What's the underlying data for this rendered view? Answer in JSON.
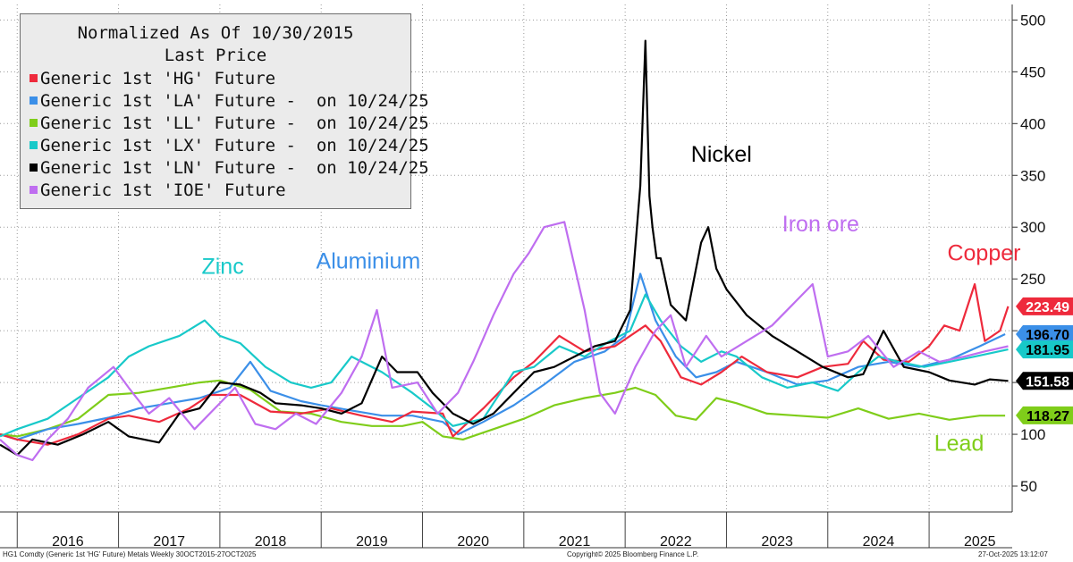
{
  "legend": {
    "title_line1": "Normalized As Of 10/30/2015",
    "title_line2": "Last Price",
    "entries": [
      {
        "label": "Generic 1st 'HG' Future",
        "color": "#ee2a3c"
      },
      {
        "label": "Generic 1st 'LA' Future -  on 10/24/25",
        "color": "#3b8fe8"
      },
      {
        "label": "Generic 1st 'LL' Future -  on 10/24/25",
        "color": "#7fcd1a"
      },
      {
        "label": "Generic 1st 'LX' Future -  on 10/24/25",
        "color": "#18c9c9"
      },
      {
        "label": "Generic 1st 'LN' Future -  on 10/24/25",
        "color": "#000000"
      },
      {
        "label": "Generic 1st 'IOE' Future",
        "color": "#bf6ef0"
      }
    ]
  },
  "footer": {
    "left": "HG1 Comdty (Generic 1st 'HG' Future) Metals Weekly 30OCT2015-27OCT2025",
    "center": "Copyright© 2025 Bloomberg Finance L.P.",
    "right": "27-Oct-2025 13:12:07"
  },
  "chart_data": {
    "type": "line",
    "x_unit": "year",
    "xlim": [
      2015.83,
      2025.82
    ],
    "ylim": [
      25,
      515
    ],
    "y_ticks": [
      50,
      100,
      150,
      200,
      250,
      300,
      350,
      400,
      450,
      500
    ],
    "x_tick_labels": [
      "2016",
      "2017",
      "2018",
      "2019",
      "2020",
      "2021",
      "2022",
      "2023",
      "2024",
      "2025"
    ],
    "y_axis_position": "right",
    "grid": "dotted",
    "legend_position": "top-left",
    "annotations": [
      {
        "text": "Nickel",
        "x": 2022.65,
        "y": 363,
        "color": "#000000"
      },
      {
        "text": "Iron ore",
        "x": 2023.55,
        "y": 296,
        "color": "#bf6ef0"
      },
      {
        "text": "Copper",
        "x": 2025.18,
        "y": 268,
        "color": "#ee2a3c"
      },
      {
        "text": "Zinc",
        "x": 2017.82,
        "y": 255,
        "color": "#18c9c9"
      },
      {
        "text": "Aluminium",
        "x": 2018.95,
        "y": 260,
        "color": "#3b8fe8"
      },
      {
        "text": "Lead",
        "x": 2025.05,
        "y": 84,
        "color": "#7fcd1a"
      }
    ],
    "last_values": [
      {
        "label": "223.49",
        "value": 223.49,
        "color": "#ee2a3c",
        "text_color": "#ffffff"
      },
      {
        "label": "196.70",
        "value": 196.7,
        "color": "#3b8fe8",
        "text_color": "#000000"
      },
      {
        "label": "181.95",
        "value": 181.95,
        "color": "#18c9c9",
        "text_color": "#000000"
      },
      {
        "label": "151.58",
        "value": 151.58,
        "color": "#000000",
        "text_color": "#ffffff"
      },
      {
        "label": "118.27",
        "value": 118.27,
        "color": "#7fcd1a",
        "text_color": "#000000"
      }
    ],
    "series": [
      {
        "name": "Generic 1st 'LL' Future -  on 10/24/25",
        "color": "#7fcd1a",
        "x": [
          2015.83,
          2016.0,
          2016.3,
          2016.6,
          2016.9,
          2017.2,
          2017.5,
          2017.8,
          2018.0,
          2018.3,
          2018.6,
          2018.9,
          2019.2,
          2019.5,
          2019.8,
          2020.0,
          2020.2,
          2020.4,
          2020.7,
          2021.0,
          2021.3,
          2021.6,
          2021.9,
          2022.1,
          2022.3,
          2022.5,
          2022.7,
          2022.9,
          2023.1,
          2023.4,
          2023.7,
          2024.0,
          2024.3,
          2024.6,
          2024.9,
          2025.2,
          2025.5,
          2025.75
        ],
        "y": [
          100,
          98,
          105,
          115,
          138,
          140,
          145,
          150,
          152,
          143,
          122,
          120,
          112,
          108,
          108,
          112,
          98,
          95,
          105,
          115,
          128,
          135,
          140,
          145,
          138,
          118,
          114,
          135,
          130,
          120,
          118,
          116,
          125,
          115,
          120,
          114,
          118,
          118
        ]
      },
      {
        "name": "Generic 1st 'LA' Future -  on 10/24/25",
        "color": "#3b8fe8",
        "x": [
          2015.83,
          2016.0,
          2016.3,
          2016.6,
          2016.9,
          2017.2,
          2017.5,
          2017.8,
          2018.1,
          2018.3,
          2018.5,
          2018.8,
          2019.0,
          2019.3,
          2019.6,
          2019.9,
          2020.2,
          2020.35,
          2020.6,
          2020.9,
          2021.2,
          2021.5,
          2021.8,
          2022.0,
          2022.15,
          2022.3,
          2022.5,
          2022.7,
          2022.9,
          2023.1,
          2023.4,
          2023.7,
          2024.0,
          2024.3,
          2024.6,
          2024.9,
          2025.2,
          2025.5,
          2025.75
        ],
        "y": [
          100,
          95,
          105,
          110,
          116,
          125,
          130,
          135,
          145,
          170,
          142,
          132,
          128,
          123,
          118,
          118,
          112,
          100,
          112,
          128,
          148,
          170,
          180,
          195,
          255,
          210,
          175,
          155,
          160,
          170,
          160,
          148,
          152,
          165,
          170,
          165,
          172,
          185,
          196.7
        ]
      },
      {
        "name": "Generic 1st 'HG' Future",
        "color": "#ee2a3c",
        "x": [
          2015.83,
          2016.0,
          2016.3,
          2016.6,
          2016.9,
          2017.1,
          2017.4,
          2017.7,
          2017.9,
          2018.2,
          2018.5,
          2018.8,
          2019.1,
          2019.4,
          2019.7,
          2019.9,
          2020.2,
          2020.3,
          2020.6,
          2020.9,
          2021.1,
          2021.35,
          2021.6,
          2021.9,
          2022.2,
          2022.35,
          2022.55,
          2022.75,
          2022.95,
          2023.15,
          2023.4,
          2023.7,
          2023.95,
          2024.2,
          2024.35,
          2024.55,
          2024.8,
          2025.0,
          2025.15,
          2025.3,
          2025.45,
          2025.55,
          2025.7,
          2025.78
        ],
        "y": [
          100,
          95,
          90,
          100,
          115,
          118,
          112,
          125,
          138,
          138,
          122,
          120,
          125,
          118,
          112,
          122,
          120,
          98,
          125,
          155,
          170,
          195,
          180,
          185,
          205,
          190,
          155,
          148,
          160,
          175,
          160,
          155,
          165,
          168,
          190,
          172,
          170,
          185,
          205,
          200,
          245,
          190,
          200,
          223.49
        ]
      },
      {
        "name": "Generic 1st 'LX' Future -  on 10/24/25",
        "color": "#18c9c9",
        "x": [
          2015.83,
          2016.0,
          2016.3,
          2016.6,
          2016.9,
          2017.1,
          2017.3,
          2017.6,
          2017.85,
          2018.0,
          2018.2,
          2018.45,
          2018.7,
          2018.9,
          2019.1,
          2019.3,
          2019.6,
          2019.9,
          2020.1,
          2020.3,
          2020.6,
          2020.9,
          2021.1,
          2021.35,
          2021.6,
          2021.85,
          2022.05,
          2022.2,
          2022.35,
          2022.55,
          2022.75,
          2022.95,
          2023.1,
          2023.35,
          2023.6,
          2023.85,
          2024.1,
          2024.3,
          2024.5,
          2024.7,
          2024.95,
          2025.2,
          2025.45,
          2025.78
        ],
        "y": [
          98,
          105,
          115,
          135,
          155,
          175,
          185,
          195,
          210,
          195,
          188,
          165,
          150,
          145,
          150,
          175,
          160,
          140,
          125,
          108,
          115,
          160,
          165,
          185,
          175,
          190,
          200,
          235,
          210,
          185,
          170,
          180,
          175,
          155,
          145,
          150,
          142,
          160,
          175,
          170,
          165,
          170,
          175,
          181.95
        ]
      },
      {
        "name": "Generic 1st 'LN' Future -  on 10/24/25",
        "color": "#000000",
        "x": [
          2015.83,
          2016.0,
          2016.15,
          2016.4,
          2016.65,
          2016.9,
          2017.1,
          2017.4,
          2017.6,
          2017.8,
          2018.0,
          2018.2,
          2018.4,
          2018.55,
          2018.8,
          2019.0,
          2019.2,
          2019.4,
          2019.6,
          2019.75,
          2019.95,
          2020.1,
          2020.3,
          2020.5,
          2020.7,
          2020.9,
          2021.1,
          2021.3,
          2021.5,
          2021.7,
          2021.9,
          2022.05,
          2022.15,
          2022.2,
          2022.24,
          2022.27,
          2022.31,
          2022.35,
          2022.45,
          2022.6,
          2022.75,
          2022.82,
          2022.9,
          2023.0,
          2023.2,
          2023.45,
          2023.7,
          2023.95,
          2024.2,
          2024.35,
          2024.55,
          2024.75,
          2025.0,
          2025.2,
          2025.45,
          2025.6,
          2025.78
        ],
        "y": [
          90,
          80,
          95,
          90,
          100,
          112,
          98,
          92,
          120,
          125,
          150,
          148,
          140,
          130,
          128,
          125,
          120,
          130,
          175,
          160,
          160,
          140,
          120,
          110,
          120,
          140,
          160,
          165,
          175,
          185,
          190,
          220,
          340,
          480,
          330,
          300,
          270,
          270,
          225,
          210,
          285,
          300,
          260,
          240,
          215,
          195,
          180,
          165,
          155,
          158,
          200,
          165,
          160,
          152,
          148,
          153,
          151.58
        ]
      },
      {
        "name": "Generic 1st 'IOE' Future",
        "color": "#bf6ef0",
        "x": [
          2015.83,
          2016.0,
          2016.15,
          2016.3,
          2016.5,
          2016.7,
          2016.95,
          2017.1,
          2017.3,
          2017.5,
          2017.75,
          2017.95,
          2018.15,
          2018.35,
          2018.55,
          2018.75,
          2018.95,
          2019.2,
          2019.4,
          2019.55,
          2019.7,
          2019.95,
          2020.15,
          2020.35,
          2020.5,
          2020.7,
          2020.9,
          2021.05,
          2021.2,
          2021.4,
          2021.6,
          2021.75,
          2021.9,
          2022.1,
          2022.3,
          2022.45,
          2022.6,
          2022.8,
          2022.95,
          2023.2,
          2023.45,
          2023.65,
          2023.85,
          2024.0,
          2024.2,
          2024.4,
          2024.65,
          2024.9,
          2025.1,
          2025.35,
          2025.55,
          2025.78
        ],
        "y": [
          95,
          80,
          75,
          95,
          115,
          145,
          165,
          145,
          120,
          135,
          105,
          125,
          145,
          110,
          105,
          120,
          110,
          140,
          175,
          220,
          145,
          150,
          120,
          140,
          170,
          215,
          255,
          275,
          300,
          305,
          220,
          140,
          120,
          165,
          200,
          215,
          165,
          195,
          175,
          190,
          205,
          225,
          245,
          175,
          180,
          195,
          165,
          180,
          170,
          175,
          180,
          185
        ]
      }
    ]
  }
}
